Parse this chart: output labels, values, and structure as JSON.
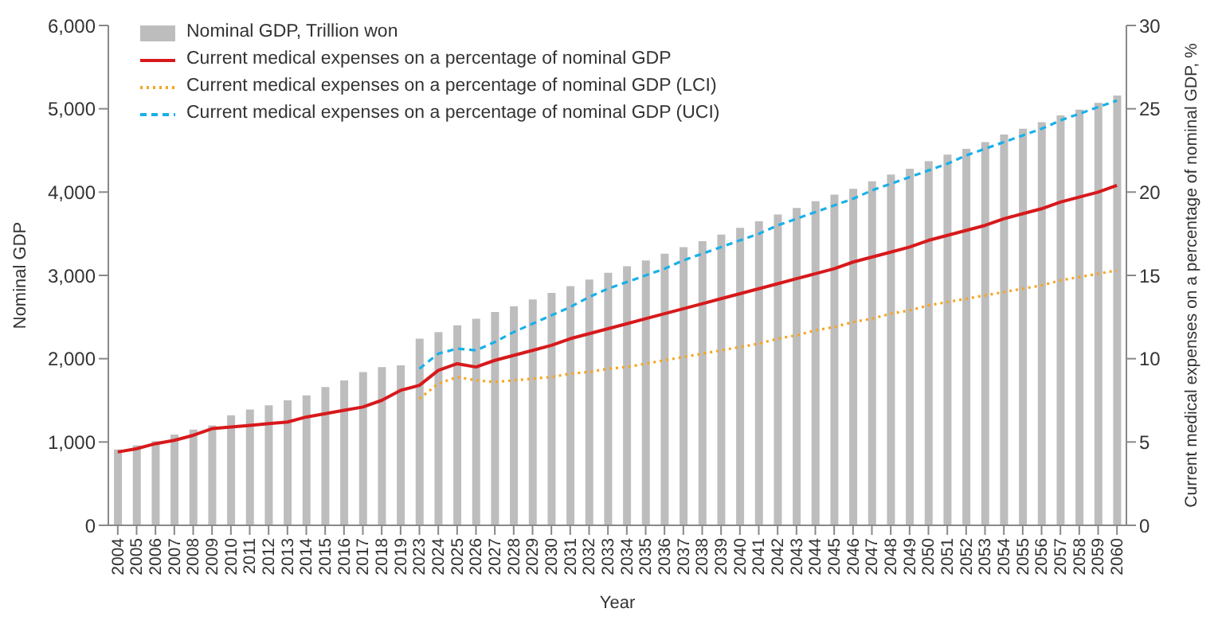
{
  "chart_data": {
    "type": "bar",
    "xlabel": "Year",
    "ylabel": "Nominal GDP",
    "y2label": "Current medical expenses on a percentage of nominal GDP, %",
    "categories": [
      "2004",
      "2005",
      "2006",
      "2007",
      "2008",
      "2009",
      "2010",
      "2011",
      "2012",
      "2013",
      "2014",
      "2015",
      "2016",
      "2017",
      "2018",
      "2019",
      "2023",
      "2024",
      "2025",
      "2026",
      "2027",
      "2028",
      "2029",
      "2030",
      "2031",
      "2032",
      "2033",
      "2034",
      "2035",
      "2036",
      "2037",
      "2038",
      "2039",
      "2040",
      "2041",
      "2042",
      "2043",
      "2044",
      "2045",
      "2046",
      "2047",
      "2048",
      "2049",
      "2050",
      "2051",
      "2052",
      "2053",
      "2054",
      "2055",
      "2056",
      "2057",
      "2058",
      "2059",
      "2060"
    ],
    "series": [
      {
        "name": "Nominal GDP, Trillion won",
        "color": "#bdbdbd",
        "values": [
          910,
          960,
          1010,
          1090,
          1150,
          1200,
          1320,
          1390,
          1440,
          1500,
          1560,
          1660,
          1740,
          1840,
          1900,
          1920,
          2240,
          2320,
          2400,
          2480,
          2560,
          2630,
          2710,
          2790,
          2870,
          2950,
          3030,
          3110,
          3180,
          3260,
          3340,
          3410,
          3490,
          3570,
          3650,
          3730,
          3810,
          3890,
          3970,
          4040,
          4130,
          4210,
          4280,
          4370,
          4450,
          4520,
          4600,
          4690,
          4760,
          4840,
          4920,
          4990,
          5070,
          5160
        ]
      },
      {
        "name": "Current medical expenses on a percentage of nominal GDP",
        "type": "line",
        "axis": "y2",
        "color": "#d7191c",
        "line_style": "solid",
        "values": [
          4.4,
          4.6,
          4.9,
          5.1,
          5.4,
          5.8,
          5.9,
          6.0,
          6.1,
          6.2,
          6.5,
          6.7,
          6.9,
          7.1,
          7.5,
          8.1,
          8.4,
          9.3,
          9.7,
          9.5,
          9.9,
          10.2,
          10.5,
          10.8,
          11.2,
          11.5,
          11.8,
          12.1,
          12.4,
          12.7,
          13.0,
          13.3,
          13.6,
          13.9,
          14.2,
          14.5,
          14.8,
          15.1,
          15.4,
          15.8,
          16.1,
          16.4,
          16.7,
          17.1,
          17.4,
          17.7,
          18.0,
          18.4,
          18.7,
          19.0,
          19.4,
          19.7,
          20.0,
          20.4
        ]
      },
      {
        "name": "Current medical expenses on a percentage of nominal GDP (LCI)",
        "type": "line",
        "axis": "y2",
        "color": "#f5a623",
        "line_style": "dotted",
        "values": [
          null,
          null,
          null,
          null,
          null,
          null,
          null,
          null,
          null,
          null,
          null,
          null,
          null,
          null,
          null,
          null,
          7.6,
          8.5,
          8.9,
          8.7,
          8.6,
          8.7,
          8.8,
          8.9,
          9.1,
          9.2,
          9.4,
          9.5,
          9.7,
          9.9,
          10.1,
          10.3,
          10.5,
          10.7,
          10.9,
          11.2,
          11.4,
          11.7,
          11.9,
          12.2,
          12.4,
          12.7,
          12.9,
          13.2,
          13.4,
          13.6,
          13.8,
          14.0,
          14.2,
          14.4,
          14.7,
          14.9,
          15.1,
          15.3
        ]
      },
      {
        "name": "Current medical expenses on a percentage of nominal GDP (UCI)",
        "type": "line",
        "axis": "y2",
        "color": "#1ab0e8",
        "line_style": "dashed",
        "values": [
          null,
          null,
          null,
          null,
          null,
          null,
          null,
          null,
          null,
          null,
          null,
          null,
          null,
          null,
          null,
          null,
          9.4,
          10.3,
          10.6,
          10.5,
          11.0,
          11.6,
          12.1,
          12.6,
          13.1,
          13.7,
          14.2,
          14.6,
          15.0,
          15.4,
          15.9,
          16.3,
          16.7,
          17.1,
          17.5,
          18.0,
          18.4,
          18.8,
          19.2,
          19.6,
          20.1,
          20.5,
          20.9,
          21.3,
          21.7,
          22.2,
          22.6,
          23.0,
          23.4,
          23.8,
          24.3,
          24.7,
          25.1,
          25.5
        ]
      }
    ],
    "ylim": [
      0,
      6000
    ],
    "yticks": [
      {
        "value": 0,
        "label": "0"
      },
      {
        "value": 1000,
        "label": "1,000"
      },
      {
        "value": 2000,
        "label": "2,000"
      },
      {
        "value": 3000,
        "label": "3,000"
      },
      {
        "value": 4000,
        "label": "4,000"
      },
      {
        "value": 5000,
        "label": "5,000"
      },
      {
        "value": 6000,
        "label": "6,000"
      }
    ],
    "y2lim": [
      0,
      30
    ],
    "y2ticks": [
      0,
      5,
      10,
      15,
      20,
      25,
      30
    ],
    "legend": "top left",
    "grid": false,
    "marker": "none"
  }
}
